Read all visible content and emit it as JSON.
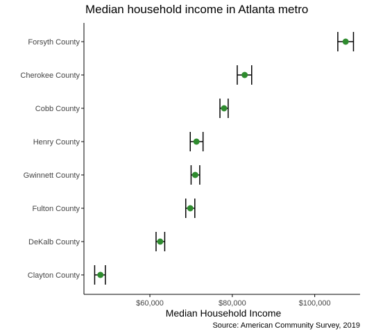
{
  "chart_data": {
    "type": "scatter",
    "title": "Median household income in Atlanta metro",
    "xlabel": "Median Household Income",
    "ylabel": "",
    "caption": "Source: American Community Survey, 2019",
    "xlim": [
      44000,
      111000
    ],
    "x_ticks": [
      60000,
      80000,
      100000
    ],
    "x_tick_labels": [
      "$60,000",
      "$80,000",
      "$100,000"
    ],
    "grid": false,
    "categories": [
      "Forsyth County",
      "Cherokee County",
      "Cobb County",
      "Henry County",
      "Gwinnett County",
      "Fulton County",
      "DeKalb County",
      "Clayton County"
    ],
    "series": [
      {
        "estimate": [
          107500,
          83000,
          78000,
          71300,
          71000,
          69800,
          62500,
          48000
        ],
        "moe_low": [
          105600,
          81200,
          77000,
          69800,
          70000,
          68700,
          61500,
          46600
        ],
        "moe_high": [
          109400,
          84700,
          79000,
          72900,
          72100,
          70900,
          63600,
          49200
        ]
      }
    ],
    "colors": {
      "point": "#2e8b2e",
      "errorbar": "#000000",
      "axis": "#000000",
      "text": "#444444"
    }
  }
}
